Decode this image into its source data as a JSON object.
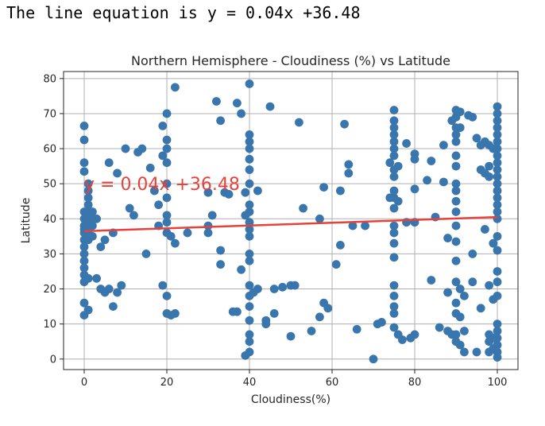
{
  "output": {
    "line_text": "The line equation is y = 0.04x +36.48"
  },
  "chart_data": {
    "type": "scatter",
    "title": "Northern Hemisphere - Cloudiness (%) vs Latitude",
    "xlabel": "Cloudiness(%)",
    "ylabel": "Latitude",
    "xlim": [
      -5,
      105
    ],
    "ylim": [
      -3,
      82
    ],
    "xticks": [
      0,
      20,
      40,
      60,
      80,
      100
    ],
    "yticks": [
      0,
      10,
      20,
      30,
      40,
      50,
      60,
      70,
      80
    ],
    "grid": true,
    "annotation": "y = 0.04x +36.48",
    "annotation_pos": [
      0,
      50
    ],
    "regression": {
      "slope": 0.04,
      "intercept": 36.48,
      "x_range": [
        0,
        100
      ],
      "color": "#e8413a"
    },
    "point_color": "#3a76ae",
    "points": [
      [
        0,
        66.5
      ],
      [
        0,
        62.5
      ],
      [
        0,
        56
      ],
      [
        0,
        53.5
      ],
      [
        0,
        42
      ],
      [
        0,
        40
      ],
      [
        0,
        38
      ],
      [
        0,
        36
      ],
      [
        0,
        34
      ],
      [
        0,
        32
      ],
      [
        0,
        30
      ],
      [
        0,
        28
      ],
      [
        0,
        26
      ],
      [
        0,
        24
      ],
      [
        0,
        22
      ],
      [
        0,
        16
      ],
      [
        0,
        12.5
      ],
      [
        0,
        37
      ],
      [
        1,
        50
      ],
      [
        1,
        48
      ],
      [
        1,
        46
      ],
      [
        1,
        44
      ],
      [
        1,
        42
      ],
      [
        1,
        40
      ],
      [
        1,
        38
      ],
      [
        1,
        36
      ],
      [
        1,
        34
      ],
      [
        1,
        14
      ],
      [
        1,
        23
      ],
      [
        2,
        42
      ],
      [
        2,
        40
      ],
      [
        2,
        38
      ],
      [
        2,
        35
      ],
      [
        3,
        40
      ],
      [
        3,
        23
      ],
      [
        4,
        32
      ],
      [
        4,
        20
      ],
      [
        5,
        34
      ],
      [
        5,
        19
      ],
      [
        6,
        20
      ],
      [
        6,
        56
      ],
      [
        7,
        36
      ],
      [
        7,
        15
      ],
      [
        8,
        19
      ],
      [
        8,
        53
      ],
      [
        9,
        21
      ],
      [
        10,
        60
      ],
      [
        11,
        43
      ],
      [
        12,
        41
      ],
      [
        13,
        59
      ],
      [
        14,
        60
      ],
      [
        15,
        30
      ],
      [
        16,
        54.5
      ],
      [
        17,
        48
      ],
      [
        18,
        44
      ],
      [
        18,
        38
      ],
      [
        19,
        66.5
      ],
      [
        19,
        58
      ],
      [
        19,
        21
      ],
      [
        20,
        70
      ],
      [
        20,
        62.5
      ],
      [
        20,
        60
      ],
      [
        20,
        56
      ],
      [
        20,
        50
      ],
      [
        20,
        46
      ],
      [
        20,
        41
      ],
      [
        20,
        39
      ],
      [
        20,
        36
      ],
      [
        20,
        18
      ],
      [
        20,
        13
      ],
      [
        21,
        35
      ],
      [
        21,
        12.5
      ],
      [
        22,
        33
      ],
      [
        22,
        77.5
      ],
      [
        22,
        13
      ],
      [
        25,
        36
      ],
      [
        30,
        38
      ],
      [
        30,
        36
      ],
      [
        30,
        47.5
      ],
      [
        31,
        41
      ],
      [
        32,
        73.5
      ],
      [
        33,
        68
      ],
      [
        33,
        31
      ],
      [
        33,
        27
      ],
      [
        34,
        47.5
      ],
      [
        35,
        47
      ],
      [
        36,
        13.5
      ],
      [
        37,
        13.5
      ],
      [
        37,
        73
      ],
      [
        38,
        70
      ],
      [
        38,
        25.5
      ],
      [
        39,
        47.5
      ],
      [
        39,
        41
      ],
      [
        39,
        1
      ],
      [
        40,
        78.5
      ],
      [
        40,
        64
      ],
      [
        40,
        62
      ],
      [
        40,
        60
      ],
      [
        40,
        57
      ],
      [
        40,
        54
      ],
      [
        40,
        50
      ],
      [
        40,
        44
      ],
      [
        40,
        42
      ],
      [
        40,
        39
      ],
      [
        40,
        37
      ],
      [
        40,
        35
      ],
      [
        40,
        30
      ],
      [
        40,
        28
      ],
      [
        40,
        21
      ],
      [
        40,
        18
      ],
      [
        40,
        15
      ],
      [
        40,
        11
      ],
      [
        40,
        7
      ],
      [
        40,
        5
      ],
      [
        40,
        2
      ],
      [
        41,
        19
      ],
      [
        42,
        48
      ],
      [
        42,
        20
      ],
      [
        44,
        11
      ],
      [
        44,
        10
      ],
      [
        45,
        72
      ],
      [
        46,
        20
      ],
      [
        46,
        13
      ],
      [
        48,
        20.5
      ],
      [
        50,
        21
      ],
      [
        50,
        6.5
      ],
      [
        51,
        21
      ],
      [
        52,
        67.5
      ],
      [
        53,
        43
      ],
      [
        55,
        8
      ],
      [
        57,
        40
      ],
      [
        57,
        12
      ],
      [
        58,
        49
      ],
      [
        58,
        16
      ],
      [
        59,
        14.5
      ],
      [
        61,
        27
      ],
      [
        62,
        48
      ],
      [
        62,
        32.5
      ],
      [
        63,
        67
      ],
      [
        64,
        55.5
      ],
      [
        64,
        53
      ],
      [
        65,
        38
      ],
      [
        66,
        8.5
      ],
      [
        68,
        38
      ],
      [
        70,
        0
      ],
      [
        71,
        10
      ],
      [
        72,
        10.5
      ],
      [
        74,
        46
      ],
      [
        74,
        56
      ],
      [
        75,
        71
      ],
      [
        75,
        68
      ],
      [
        75,
        66
      ],
      [
        75,
        64
      ],
      [
        75,
        62
      ],
      [
        75,
        60
      ],
      [
        75,
        58
      ],
      [
        75,
        54
      ],
      [
        75,
        52
      ],
      [
        75,
        48
      ],
      [
        75,
        46
      ],
      [
        75,
        43
      ],
      [
        75,
        38
      ],
      [
        75,
        36
      ],
      [
        75,
        33
      ],
      [
        75,
        29
      ],
      [
        75,
        21
      ],
      [
        75,
        18
      ],
      [
        75,
        15
      ],
      [
        75,
        13
      ],
      [
        75,
        9
      ],
      [
        76,
        55
      ],
      [
        76,
        45
      ],
      [
        76,
        7
      ],
      [
        77,
        5.5
      ],
      [
        78,
        61.5
      ],
      [
        78,
        39
      ],
      [
        79,
        6
      ],
      [
        80,
        7
      ],
      [
        80,
        58.5
      ],
      [
        80,
        57
      ],
      [
        80,
        39
      ],
      [
        80,
        48.5
      ],
      [
        83,
        51
      ],
      [
        84,
        56.5
      ],
      [
        84,
        22.5
      ],
      [
        85,
        40.5
      ],
      [
        86,
        9
      ],
      [
        87,
        61
      ],
      [
        87,
        50.5
      ],
      [
        88,
        34.5
      ],
      [
        88,
        19
      ],
      [
        88,
        8
      ],
      [
        89,
        68
      ],
      [
        89,
        7
      ],
      [
        90,
        71
      ],
      [
        90,
        69
      ],
      [
        90,
        66
      ],
      [
        90,
        64
      ],
      [
        90,
        62
      ],
      [
        90,
        58
      ],
      [
        90,
        55
      ],
      [
        90,
        50
      ],
      [
        90,
        48
      ],
      [
        90,
        45
      ],
      [
        90,
        42
      ],
      [
        90,
        38
      ],
      [
        90,
        33.5
      ],
      [
        90,
        28
      ],
      [
        90,
        22
      ],
      [
        90,
        16
      ],
      [
        90,
        13
      ],
      [
        90,
        7
      ],
      [
        90,
        5
      ],
      [
        91,
        70.5
      ],
      [
        91,
        66
      ],
      [
        91,
        20
      ],
      [
        91,
        12
      ],
      [
        91,
        4
      ],
      [
        92,
        2
      ],
      [
        92,
        18
      ],
      [
        92,
        8
      ],
      [
        93,
        69.5
      ],
      [
        94,
        69
      ],
      [
        94,
        30
      ],
      [
        94,
        22
      ],
      [
        95,
        2
      ],
      [
        95,
        63
      ],
      [
        96,
        14.5
      ],
      [
        96,
        61
      ],
      [
        96,
        54
      ],
      [
        97,
        62
      ],
      [
        97,
        53
      ],
      [
        97,
        37
      ],
      [
        98,
        61
      ],
      [
        98,
        55
      ],
      [
        98,
        52
      ],
      [
        98,
        21
      ],
      [
        98,
        7
      ],
      [
        98,
        5
      ],
      [
        98,
        2
      ],
      [
        99,
        60
      ],
      [
        99,
        33
      ],
      [
        99,
        17
      ],
      [
        99,
        6
      ],
      [
        99,
        3
      ],
      [
        100,
        72
      ],
      [
        100,
        70
      ],
      [
        100,
        68
      ],
      [
        100,
        66
      ],
      [
        100,
        64
      ],
      [
        100,
        62
      ],
      [
        100,
        60
      ],
      [
        100,
        58
      ],
      [
        100,
        56
      ],
      [
        100,
        54
      ],
      [
        100,
        52
      ],
      [
        100,
        50
      ],
      [
        100,
        48
      ],
      [
        100,
        46
      ],
      [
        100,
        44
      ],
      [
        100,
        42
      ],
      [
        100,
        40
      ],
      [
        100,
        35
      ],
      [
        100,
        31
      ],
      [
        100,
        25
      ],
      [
        100,
        22
      ],
      [
        100,
        18
      ],
      [
        100,
        10
      ],
      [
        100,
        8
      ],
      [
        100,
        6
      ],
      [
        100,
        4
      ],
      [
        100,
        2
      ],
      [
        100,
        0.5
      ]
    ]
  }
}
